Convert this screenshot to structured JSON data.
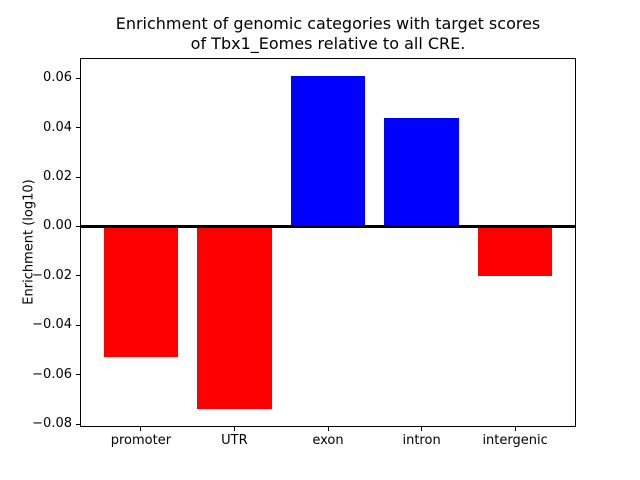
{
  "chart_data": {
    "type": "bar",
    "title_line1": "Enrichment of genomic categories with target scores",
    "title_line2": "of Tbx1_Eomes relative to all CRE.",
    "ylabel": "Enrichment (log10)",
    "xlabel": "",
    "categories": [
      "promoter",
      "UTR",
      "exon",
      "intron",
      "intergenic"
    ],
    "values": [
      -0.053,
      -0.074,
      0.061,
      0.044,
      -0.02
    ],
    "bar_colors": [
      "#ff0000",
      "#ff0000",
      "#0000ff",
      "#0000ff",
      "#ff0000"
    ],
    "positive_color": "#0000ff",
    "negative_color": "#ff0000",
    "background_color": "#ffffff",
    "ylim": [
      -0.0808,
      0.0678
    ],
    "yticks": [
      0.06,
      0.04,
      0.02,
      0.0,
      -0.02,
      -0.04,
      -0.06,
      -0.08
    ],
    "ytick_labels": [
      "0.06",
      "0.04",
      "0.02",
      "0.00",
      "−0.02",
      "−0.04",
      "−0.06",
      "−0.08"
    ],
    "bar_width_fraction": 0.8,
    "x_margin": 0.64,
    "zero_line": true,
    "grid": false,
    "legend": false
  }
}
